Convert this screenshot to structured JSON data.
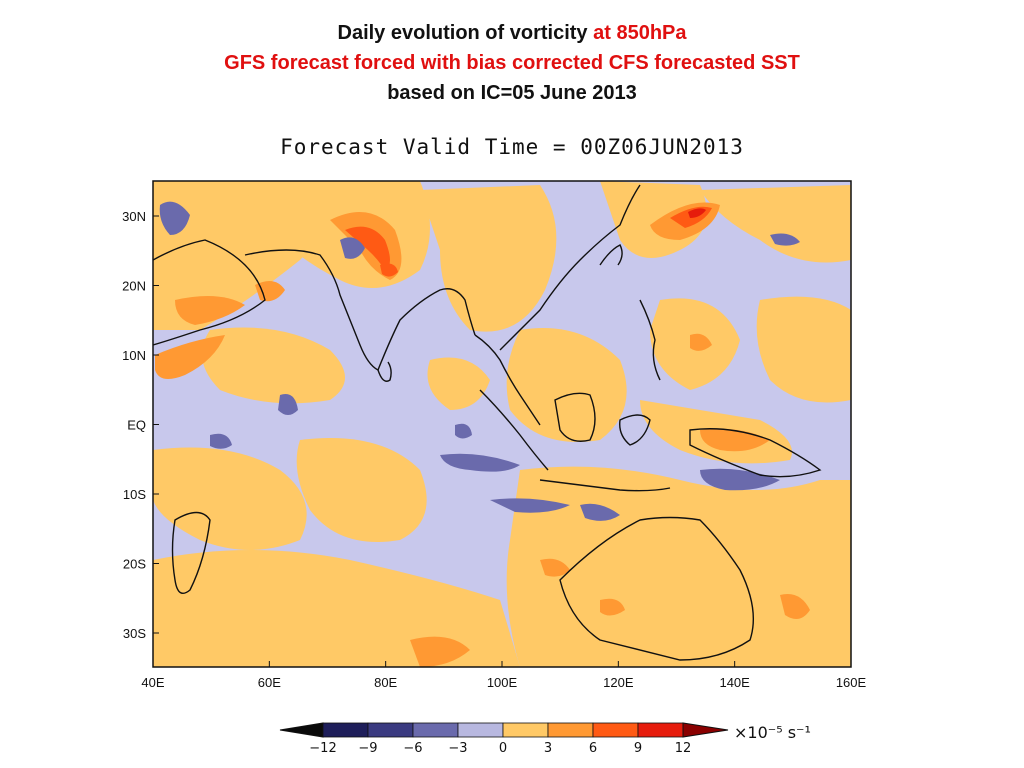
{
  "title": {
    "line1_black": "Daily evolution of vorticity ",
    "line1_red": "at 850hPa",
    "line2": "GFS forecast forced with bias corrected CFS forecasted SST",
    "line3": "based on IC=05 June 2013"
  },
  "valid_time": "Forecast Valid Time = 00Z06JUN2013",
  "axes": {
    "x_ticks": [
      "40E",
      "60E",
      "80E",
      "100E",
      "120E",
      "140E",
      "160E"
    ],
    "y_ticks": [
      "30N",
      "20N",
      "10N",
      "EQ",
      "10S",
      "20S",
      "30S"
    ]
  },
  "colorbar": {
    "labels": [
      "−12",
      "−9",
      "−6",
      "−3",
      "0",
      "3",
      "6",
      "9",
      "12"
    ],
    "colors": [
      "#1e1e5a",
      "#3a3a80",
      "#6a6aac",
      "#b8b8e0",
      "#ffc966",
      "#ff9933",
      "#ff5a14",
      "#e61c0c"
    ],
    "units": "×10⁻⁵ s⁻¹"
  },
  "colors": {
    "background_field": "#c8c8ec",
    "positive_light": "#ffc966",
    "positive_mid": "#ff9933",
    "positive_strong": "#ff5a14",
    "positive_max": "#e61c0c",
    "negative_light": "#b8b8e0",
    "negative_mid": "#6a6aac",
    "title_red": "#e01010"
  }
}
